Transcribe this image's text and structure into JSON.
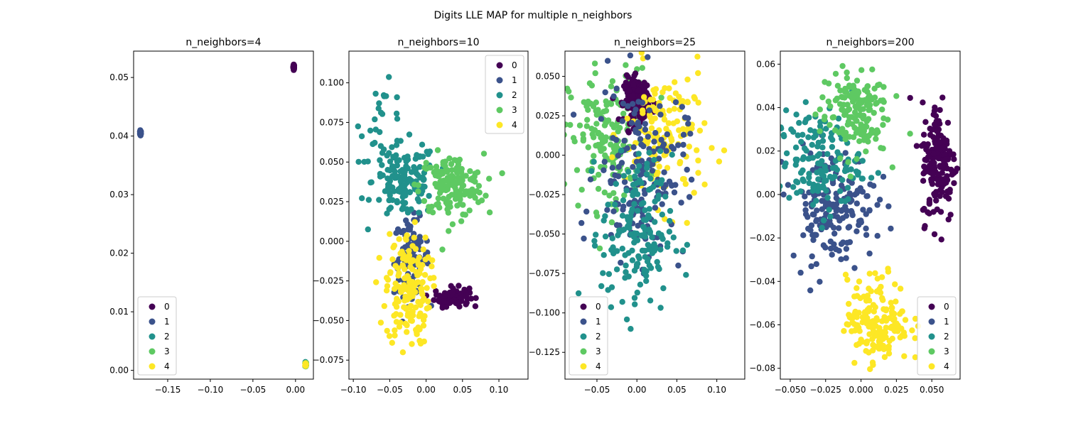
{
  "figure": {
    "title": "Digits LLE MAP for multiple n_neighbors"
  },
  "colors": {
    "0": "#440154",
    "1": "#3b528b",
    "2": "#21918c",
    "3": "#5ec962",
    "4": "#fde725"
  },
  "legend_labels": [
    "0",
    "1",
    "2",
    "3",
    "4"
  ],
  "chart_data": [
    {
      "type": "scatter",
      "title": "n_neighbors=4",
      "xlim": [
        -0.19,
        0.021
      ],
      "ylim": [
        -0.0015,
        0.0545
      ],
      "xticks": [
        -0.15,
        -0.1,
        -0.05,
        0.0
      ],
      "xtick_labels": [
        "−0.15",
        "−0.10",
        "−0.05",
        "0.00"
      ],
      "yticks": [
        0.0,
        0.01,
        0.02,
        0.03,
        0.04,
        0.05
      ],
      "ytick_labels": [
        "0.00",
        "0.01",
        "0.02",
        "0.03",
        "0.04",
        "0.05"
      ],
      "legend_position": "lower-left",
      "clusters": [
        {
          "label": "0",
          "cx": -0.002,
          "cy": 0.0518,
          "sx": 0.0003,
          "sy": 0.0002,
          "n": 40
        },
        {
          "label": "1",
          "cx": -0.182,
          "cy": 0.0405,
          "sx": 0.0003,
          "sy": 0.0002,
          "n": 40
        },
        {
          "label": "2",
          "cx": 0.012,
          "cy": 0.001,
          "sx": 0.0003,
          "sy": 0.0002,
          "n": 40
        },
        {
          "label": "3",
          "cx": 0.012,
          "cy": 0.001,
          "sx": 0.0003,
          "sy": 0.0002,
          "n": 20
        },
        {
          "label": "4",
          "cx": 0.012,
          "cy": 0.001,
          "sx": 0.0003,
          "sy": 0.0002,
          "n": 20
        }
      ]
    },
    {
      "type": "scatter",
      "title": "n_neighbors=10",
      "xlim": [
        -0.106,
        0.14
      ],
      "ylim": [
        -0.087,
        0.12
      ],
      "xticks": [
        -0.1,
        -0.05,
        0.0,
        0.05,
        0.1
      ],
      "xtick_labels": [
        "−0.10",
        "−0.05",
        "0.00",
        "0.05",
        "0.10"
      ],
      "yticks": [
        -0.075,
        -0.05,
        -0.025,
        0.0,
        0.025,
        0.05,
        0.075,
        0.1
      ],
      "ytick_labels": [
        "−0.075",
        "−0.050",
        "−0.025",
        "0.000",
        "0.025",
        "0.050",
        "0.075",
        "0.100"
      ],
      "legend_position": "upper-right",
      "clusters": [
        {
          "label": "0",
          "cx": 0.035,
          "cy": -0.035,
          "sx": 0.012,
          "sy": 0.003,
          "n": 90
        },
        {
          "label": "1",
          "cx": -0.02,
          "cy": -0.01,
          "sx": 0.012,
          "sy": 0.012,
          "n": 90
        },
        {
          "label": "2",
          "cx": -0.03,
          "cy": 0.038,
          "sx": 0.022,
          "sy": 0.012,
          "n": 140
        },
        {
          "label": "2",
          "cx": -0.06,
          "cy": 0.075,
          "sx": 0.015,
          "sy": 0.012,
          "n": 25
        },
        {
          "label": "3",
          "cx": 0.035,
          "cy": 0.035,
          "sx": 0.022,
          "sy": 0.01,
          "n": 160
        },
        {
          "label": "4",
          "cx": -0.025,
          "cy": -0.03,
          "sx": 0.015,
          "sy": 0.018,
          "n": 170
        }
      ]
    },
    {
      "type": "scatter",
      "title": "n_neighbors=25",
      "xlim": [
        -0.09,
        0.135
      ],
      "ylim": [
        -0.142,
        0.066
      ],
      "xticks": [
        -0.05,
        0.0,
        0.05,
        0.1
      ],
      "xtick_labels": [
        "−0.05",
        "0.00",
        "0.05",
        "0.10"
      ],
      "yticks": [
        -0.125,
        -0.1,
        -0.075,
        -0.05,
        -0.025,
        0.0,
        0.025,
        0.05
      ],
      "ytick_labels": [
        "−0.125",
        "−0.100",
        "−0.075",
        "−0.050",
        "−0.025",
        "0.000",
        "0.025",
        "0.050"
      ],
      "legend_position": "lower-left",
      "clusters": [
        {
          "label": "3",
          "cx": -0.035,
          "cy": 0.01,
          "sx": 0.025,
          "sy": 0.022,
          "n": 170
        },
        {
          "label": "0",
          "cx": 0.0,
          "cy": 0.035,
          "sx": 0.008,
          "sy": 0.007,
          "n": 170
        },
        {
          "label": "4",
          "cx": 0.035,
          "cy": 0.012,
          "sx": 0.025,
          "sy": 0.022,
          "n": 150
        },
        {
          "label": "1",
          "cx": 0.005,
          "cy": -0.01,
          "sx": 0.028,
          "sy": 0.028,
          "n": 170
        },
        {
          "label": "2",
          "cx": 0.0,
          "cy": -0.05,
          "sx": 0.022,
          "sy": 0.025,
          "n": 170
        }
      ]
    },
    {
      "type": "scatter",
      "title": "n_neighbors=200",
      "xlim": [
        -0.057,
        0.07
      ],
      "ylim": [
        -0.085,
        0.066
      ],
      "xticks": [
        -0.05,
        -0.025,
        0.0,
        0.025,
        0.05
      ],
      "xtick_labels": [
        "−0.050",
        "−0.025",
        "0.000",
        "0.025",
        "0.050"
      ],
      "yticks": [
        -0.08,
        -0.06,
        -0.04,
        -0.02,
        0.0,
        0.02,
        0.04,
        0.06
      ],
      "ytick_labels": [
        "−0.08",
        "−0.06",
        "−0.04",
        "−0.02",
        "0.00",
        "0.02",
        "0.04",
        "0.06"
      ],
      "legend_position": "lower-right",
      "clusters": [
        {
          "label": "0",
          "cx": 0.055,
          "cy": 0.015,
          "sx": 0.006,
          "sy": 0.014,
          "n": 170
        },
        {
          "label": "1",
          "cx": -0.02,
          "cy": -0.005,
          "sx": 0.015,
          "sy": 0.013,
          "n": 170
        },
        {
          "label": "2",
          "cx": -0.03,
          "cy": 0.015,
          "sx": 0.015,
          "sy": 0.012,
          "n": 150
        },
        {
          "label": "3",
          "cx": -0.005,
          "cy": 0.038,
          "sx": 0.012,
          "sy": 0.01,
          "n": 160
        },
        {
          "label": "4",
          "cx": 0.012,
          "cy": -0.058,
          "sx": 0.011,
          "sy": 0.01,
          "n": 170
        }
      ]
    }
  ]
}
